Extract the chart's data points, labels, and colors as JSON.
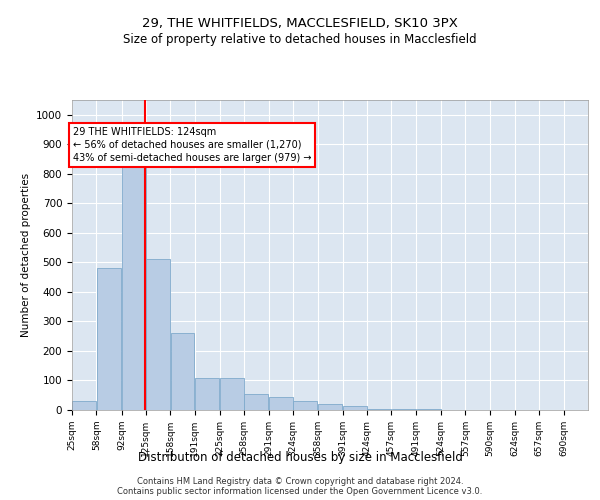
{
  "title1": "29, THE WHITFIELDS, MACCLESFIELD, SK10 3PX",
  "title2": "Size of property relative to detached houses in Macclesfield",
  "xlabel": "Distribution of detached houses by size in Macclesfield",
  "ylabel": "Number of detached properties",
  "footer1": "Contains HM Land Registry data © Crown copyright and database right 2024.",
  "footer2": "Contains public sector information licensed under the Open Government Licence v3.0.",
  "annotation_title": "29 THE WHITFIELDS: 124sqm",
  "annotation_line1": "← 56% of detached houses are smaller (1,270)",
  "annotation_line2": "43% of semi-detached houses are larger (979) →",
  "bar_color": "#b8cce4",
  "bar_edge_color": "#7faacc",
  "bg_color": "#dce6f1",
  "grid_color": "#ffffff",
  "redline_x": 124,
  "categories": [
    "25sqm",
    "58sqm",
    "92sqm",
    "125sqm",
    "158sqm",
    "191sqm",
    "225sqm",
    "258sqm",
    "291sqm",
    "324sqm",
    "358sqm",
    "391sqm",
    "424sqm",
    "457sqm",
    "491sqm",
    "524sqm",
    "557sqm",
    "590sqm",
    "624sqm",
    "657sqm",
    "690sqm"
  ],
  "bin_starts": [
    25,
    58,
    92,
    125,
    158,
    191,
    225,
    258,
    291,
    324,
    358,
    391,
    424,
    457,
    491,
    524,
    557,
    590,
    624,
    657,
    690
  ],
  "bin_width": 33,
  "values": [
    30,
    480,
    830,
    510,
    260,
    108,
    108,
    55,
    45,
    32,
    20,
    14,
    5,
    4,
    3,
    0,
    0,
    0,
    0,
    0,
    0
  ],
  "ylim": [
    0,
    1050
  ],
  "yticks": [
    0,
    100,
    200,
    300,
    400,
    500,
    600,
    700,
    800,
    900,
    1000
  ]
}
